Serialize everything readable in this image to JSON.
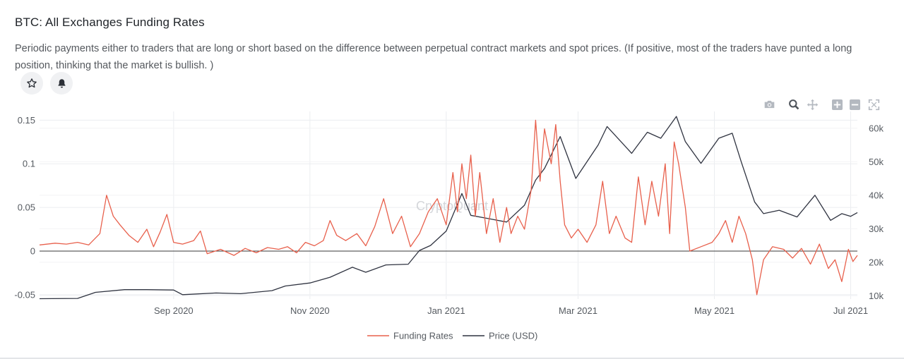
{
  "header": {
    "title": "BTC: All Exchanges Funding Rates",
    "description": "Periodic payments either to traders that are long or short based on the difference between perpetual contract markets and spot prices. (If positive, most of the traders have punted a long position, thinking that the market is bullish. )"
  },
  "actions": {
    "favorite_icon": "star-icon",
    "alert_icon": "bell-icon"
  },
  "toolbar": {
    "icons": [
      "camera-icon",
      "zoom-icon",
      "pan-icon",
      "zoom-in-icon",
      "zoom-out-icon",
      "autoscale-icon"
    ]
  },
  "watermark": "CryptoQuant",
  "colors": {
    "funding": "#e8604c",
    "price": "#2f3340",
    "grid": "#ebedf0",
    "zero_line": "#3a3a3a",
    "tick_text": "#555a60"
  },
  "chart_data": {
    "type": "line",
    "title": "",
    "x_ticks": [
      "Sep 2020",
      "Nov 2020",
      "Jan 2021",
      "Mar 2021",
      "May 2021",
      "Jul 2021"
    ],
    "x_tick_dates": [
      "2020-09-01",
      "2020-11-01",
      "2021-01-01",
      "2021-03-01",
      "2021-05-01",
      "2021-07-01"
    ],
    "x_range": [
      "2020-07-03",
      "2021-07-04"
    ],
    "y_left_ticks": [
      "-0.05",
      "0",
      "0.05",
      "0.1",
      "0.15"
    ],
    "y_left_range": [
      -0.055,
      0.16
    ],
    "y_right_ticks": [
      "10k",
      "20k",
      "30k",
      "40k",
      "50k",
      "60k"
    ],
    "y_right_range": [
      9000,
      65000
    ],
    "grid": true,
    "zero_line": true,
    "legend_position": "bottom-center",
    "series": [
      {
        "name": "Funding Rates",
        "axis": "left",
        "points": [
          [
            "2020-07-03",
            0.007
          ],
          [
            "2020-07-10",
            0.009
          ],
          [
            "2020-07-15",
            0.008
          ],
          [
            "2020-07-20",
            0.01
          ],
          [
            "2020-07-25",
            0.007
          ],
          [
            "2020-07-30",
            0.02
          ],
          [
            "2020-08-02",
            0.064
          ],
          [
            "2020-08-05",
            0.04
          ],
          [
            "2020-08-08",
            0.03
          ],
          [
            "2020-08-12",
            0.018
          ],
          [
            "2020-08-16",
            0.01
          ],
          [
            "2020-08-20",
            0.025
          ],
          [
            "2020-08-23",
            0.005
          ],
          [
            "2020-08-26",
            0.022
          ],
          [
            "2020-08-29",
            0.042
          ],
          [
            "2020-09-01",
            0.01
          ],
          [
            "2020-09-05",
            0.008
          ],
          [
            "2020-09-10",
            0.012
          ],
          [
            "2020-09-13",
            0.023
          ],
          [
            "2020-09-16",
            -0.003
          ],
          [
            "2020-09-22",
            0.002
          ],
          [
            "2020-09-28",
            -0.005
          ],
          [
            "2020-10-03",
            0.003
          ],
          [
            "2020-10-08",
            -0.002
          ],
          [
            "2020-10-13",
            0.004
          ],
          [
            "2020-10-18",
            0.002
          ],
          [
            "2020-10-22",
            0.005
          ],
          [
            "2020-10-26",
            -0.002
          ],
          [
            "2020-10-30",
            0.01
          ],
          [
            "2020-11-03",
            0.006
          ],
          [
            "2020-11-07",
            0.012
          ],
          [
            "2020-11-10",
            0.035
          ],
          [
            "2020-11-13",
            0.018
          ],
          [
            "2020-11-17",
            0.012
          ],
          [
            "2020-11-22",
            0.02
          ],
          [
            "2020-11-26",
            0.006
          ],
          [
            "2020-11-30",
            0.028
          ],
          [
            "2020-12-04",
            0.06
          ],
          [
            "2020-12-08",
            0.02
          ],
          [
            "2020-12-12",
            0.04
          ],
          [
            "2020-12-16",
            0.005
          ],
          [
            "2020-12-20",
            0.02
          ],
          [
            "2020-12-24",
            0.045
          ],
          [
            "2020-12-28",
            0.06
          ],
          [
            "2021-01-01",
            0.03
          ],
          [
            "2021-01-04",
            0.09
          ],
          [
            "2021-01-06",
            0.045
          ],
          [
            "2021-01-08",
            0.1
          ],
          [
            "2021-01-10",
            0.06
          ],
          [
            "2021-01-12",
            0.11
          ],
          [
            "2021-01-14",
            0.04
          ],
          [
            "2021-01-16",
            0.09
          ],
          [
            "2021-01-19",
            0.02
          ],
          [
            "2021-01-22",
            0.06
          ],
          [
            "2021-01-25",
            0.01
          ],
          [
            "2021-01-28",
            0.05
          ],
          [
            "2021-01-30",
            0.02
          ],
          [
            "2021-02-02",
            0.04
          ],
          [
            "2021-02-05",
            0.025
          ],
          [
            "2021-02-08",
            0.07
          ],
          [
            "2021-02-10",
            0.15
          ],
          [
            "2021-02-12",
            0.08
          ],
          [
            "2021-02-14",
            0.14
          ],
          [
            "2021-02-17",
            0.1
          ],
          [
            "2021-02-19",
            0.145
          ],
          [
            "2021-02-21",
            0.08
          ],
          [
            "2021-02-23",
            0.03
          ],
          [
            "2021-02-26",
            0.015
          ],
          [
            "2021-03-01",
            0.025
          ],
          [
            "2021-03-05",
            0.01
          ],
          [
            "2021-03-09",
            0.03
          ],
          [
            "2021-03-12",
            0.08
          ],
          [
            "2021-03-15",
            0.02
          ],
          [
            "2021-03-18",
            0.04
          ],
          [
            "2021-03-22",
            0.015
          ],
          [
            "2021-03-25",
            0.01
          ],
          [
            "2021-03-28",
            0.085
          ],
          [
            "2021-03-31",
            0.03
          ],
          [
            "2021-04-03",
            0.08
          ],
          [
            "2021-04-06",
            0.04
          ],
          [
            "2021-04-09",
            0.1
          ],
          [
            "2021-04-11",
            0.02
          ],
          [
            "2021-04-13",
            0.125
          ],
          [
            "2021-04-15",
            0.1
          ],
          [
            "2021-04-18",
            0.05
          ],
          [
            "2021-04-20",
            0.0
          ],
          [
            "2021-04-25",
            0.005
          ],
          [
            "2021-04-30",
            0.01
          ],
          [
            "2021-05-03",
            0.02
          ],
          [
            "2021-05-06",
            0.035
          ],
          [
            "2021-05-09",
            0.01
          ],
          [
            "2021-05-12",
            0.04
          ],
          [
            "2021-05-15",
            0.02
          ],
          [
            "2021-05-18",
            -0.01
          ],
          [
            "2021-05-20",
            -0.05
          ],
          [
            "2021-05-23",
            -0.01
          ],
          [
            "2021-05-27",
            0.005
          ],
          [
            "2021-06-01",
            0.002
          ],
          [
            "2021-06-05",
            -0.008
          ],
          [
            "2021-06-09",
            0.003
          ],
          [
            "2021-06-13",
            -0.015
          ],
          [
            "2021-06-17",
            0.008
          ],
          [
            "2021-06-21",
            -0.02
          ],
          [
            "2021-06-24",
            -0.01
          ],
          [
            "2021-06-27",
            -0.035
          ],
          [
            "2021-06-30",
            0.002
          ],
          [
            "2021-07-02",
            -0.012
          ],
          [
            "2021-07-04",
            -0.005
          ]
        ]
      },
      {
        "name": "Price (USD)",
        "axis": "right",
        "points": [
          [
            "2020-07-03",
            9100
          ],
          [
            "2020-07-20",
            9200
          ],
          [
            "2020-07-28",
            11000
          ],
          [
            "2020-08-10",
            11800
          ],
          [
            "2020-08-20",
            11800
          ],
          [
            "2020-09-01",
            11700
          ],
          [
            "2020-09-05",
            10300
          ],
          [
            "2020-09-20",
            10800
          ],
          [
            "2020-10-01",
            10600
          ],
          [
            "2020-10-15",
            11500
          ],
          [
            "2020-10-21",
            12900
          ],
          [
            "2020-11-01",
            13800
          ],
          [
            "2020-11-10",
            15500
          ],
          [
            "2020-11-20",
            18500
          ],
          [
            "2020-11-26",
            17000
          ],
          [
            "2020-12-05",
            19200
          ],
          [
            "2020-12-15",
            19400
          ],
          [
            "2020-12-20",
            23500
          ],
          [
            "2020-12-25",
            25000
          ],
          [
            "2021-01-01",
            29300
          ],
          [
            "2021-01-08",
            40500
          ],
          [
            "2021-01-12",
            34000
          ],
          [
            "2021-01-20",
            33000
          ],
          [
            "2021-01-28",
            32000
          ],
          [
            "2021-02-05",
            37000
          ],
          [
            "2021-02-10",
            44500
          ],
          [
            "2021-02-14",
            48000
          ],
          [
            "2021-02-21",
            57500
          ],
          [
            "2021-02-28",
            45000
          ],
          [
            "2021-03-10",
            55000
          ],
          [
            "2021-03-14",
            60500
          ],
          [
            "2021-03-25",
            52500
          ],
          [
            "2021-04-01",
            58800
          ],
          [
            "2021-04-07",
            57000
          ],
          [
            "2021-04-14",
            63500
          ],
          [
            "2021-04-18",
            56000
          ],
          [
            "2021-04-25",
            49500
          ],
          [
            "2021-05-03",
            57000
          ],
          [
            "2021-05-09",
            58500
          ],
          [
            "2021-05-13",
            50000
          ],
          [
            "2021-05-19",
            38000
          ],
          [
            "2021-05-23",
            34500
          ],
          [
            "2021-05-30",
            35500
          ],
          [
            "2021-06-07",
            33500
          ],
          [
            "2021-06-15",
            40000
          ],
          [
            "2021-06-22",
            32500
          ],
          [
            "2021-06-27",
            34500
          ],
          [
            "2021-07-01",
            33700
          ],
          [
            "2021-07-04",
            34800
          ]
        ]
      }
    ]
  },
  "legend": [
    {
      "label": "Funding Rates",
      "color": "#e8604c"
    },
    {
      "label": "Price (USD)",
      "color": "#2f3340"
    }
  ]
}
